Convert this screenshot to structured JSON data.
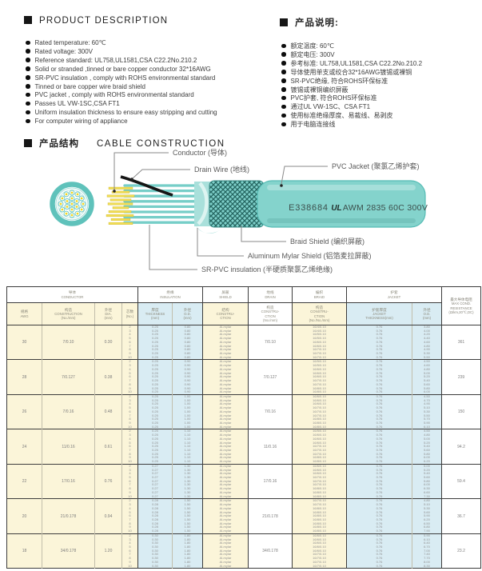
{
  "colors": {
    "accent_teal": "#5fc2bb",
    "jacket_teal": "#84d3cc",
    "conductor_yellow": "#f2dd55",
    "table_yellow": "#fbf5d9",
    "table_blue": "#d9ecf3"
  },
  "product_description": {
    "title": "PRODUCT DESCRIPTION",
    "items": [
      "Rated temperature: 60℃",
      "Rated voltage: 300V",
      "Reference standard: UL758,UL1581,CSA C22.2No.210.2",
      "Solid or stranded ,tinned or bare copper conductor 32*16AWG",
      "SR-PVC insulation , comply with ROHS environmental standard",
      "Tinned or bare copper wire braid shield",
      "PVC jacket , comply with ROHS environmental standard",
      "Passes UL VW-1SC,CSA FT1",
      "Uniform insulation thickness to ensure easy stripping and cutting",
      "For computer wiring of appliance"
    ]
  },
  "product_description_cn": {
    "title": "产品说明:",
    "items": [
      "额定温度: 60℃",
      "额定电压: 300V",
      "参考标准: UL758,UL1581,CSA C22.2No.210.2",
      "导体使用单支或绞合32*16AWG镀锡或裸铜",
      "SR-PVC绝缘, 符合ROHS环保标准",
      "镀锡或裸铜编织屏蔽",
      "PVC护套, 符合ROHS环保标准",
      "通过UL VW-1SC、CSA FT1",
      "使用标准绝缘厚度、易裁线、易剥皮",
      "用于电脑连接线"
    ]
  },
  "construction": {
    "title_cn": "产品结构",
    "title_en": "CABLE CONSTRUCTION",
    "labels": {
      "conductor": "Conductor (导体)",
      "drain": "Drain Wire (地线)",
      "jacket": "PVC Jacket (聚氯乙烯护套)",
      "braid": "Braid Shield (编织屏蔽)",
      "mylar": "Aluminum Mylar Shield (铝箔麦拉屏蔽)",
      "insulation": "SR-PVC insulation (半硬质聚氯乙烯绝缘)"
    },
    "print_left": "E338684",
    "print_ul": "UL",
    "print_right": "AWM 2835 60C 300V"
  },
  "table": {
    "groups": [
      {
        "cn": "导体",
        "en": "CONDUCTOR",
        "span": 4
      },
      {
        "cn": "绝缘",
        "en": "INSULATION",
        "span": 2
      },
      {
        "cn": "屏蔽",
        "en": "SHIELD",
        "span": 1
      },
      {
        "cn": "地线",
        "en": "DRAIN",
        "span": 1
      },
      {
        "cn": "编织",
        "en": "BRAID",
        "span": 1
      },
      {
        "cn": "护套",
        "en": "JACKET",
        "span": 2
      }
    ],
    "columns": [
      {
        "lines": [
          "规格",
          "AWG"
        ]
      },
      {
        "lines": [
          "构造",
          "CONSTRUCTION",
          "(No./mm)"
        ]
      },
      {
        "lines": [
          "外径",
          "DIA.",
          "(mm)"
        ]
      },
      {
        "lines": [
          "芯数",
          "(No.)"
        ]
      },
      {
        "lines": [
          "厚度",
          "THICKNESS",
          "(mm)"
        ]
      },
      {
        "lines": [
          "外径",
          "O.D.",
          "(mm)"
        ]
      },
      {
        "lines": [
          "结构",
          "CONSTRU-",
          "CTION"
        ]
      },
      {
        "lines": [
          "构造",
          "CONSTRU-",
          "CTION",
          "(No./mm)"
        ]
      },
      {
        "lines": [
          "构造",
          "CONSTRU-",
          "CTION",
          "(No./No./mm)"
        ]
      },
      {
        "lines": [
          "护套厚度",
          "JACKET",
          "THICKNESS(mm)"
        ]
      },
      {
        "lines": [
          "外径",
          "O.D.",
          "(mm)"
        ]
      }
    ],
    "last_col": {
      "lines": [
        "最大导体电阻",
        "MAX COND.",
        "RESISTANCE",
        "(Ω/km,20℃,DC)"
      ]
    },
    "rows": [
      {
        "awg": "30",
        "construction": "7/0.10",
        "dia": "0.30",
        "drain": "7/0.10",
        "max_resistance": "361",
        "cores": [
          "2",
          "3",
          "4",
          "5",
          "6",
          "7",
          "8",
          "9",
          "10"
        ],
        "ins_thickness": [
          "0.25",
          "0.25",
          "0.25",
          "0.25",
          "0.25",
          "0.25",
          "0.25",
          "0.25",
          "0.25"
        ],
        "ins_od": [
          "0.80",
          "0.80",
          "0.80",
          "0.80",
          "0.80",
          "0.80",
          "0.80",
          "0.80",
          "0.80"
        ],
        "shield": [
          "Al-mylar",
          "Al-mylar",
          "Al-mylar",
          "Al-mylar",
          "Al-mylar",
          "Al-mylar",
          "Al-mylar",
          "Al-mylar",
          "Al-mylar"
        ],
        "braid": [
          "16/4/0.10",
          "16/4/0.10",
          "16/5/0.10",
          "16/5/0.10",
          "16/6/0.10",
          "16/6/0.10",
          "16/7/0.10",
          "16/7/0.10",
          "16/7/0.10"
        ],
        "jacket_thickness": [
          "0.76",
          "0.76",
          "0.76",
          "0.76",
          "0.76",
          "0.76",
          "0.76",
          "0.76",
          "0.76"
        ],
        "jacket_od": [
          "3.80",
          "4.00",
          "4.20",
          "4.40",
          "4.60",
          "4.80",
          "4.90",
          "5.30",
          "5.50"
        ]
      },
      {
        "awg": "28",
        "construction": "7/0.127",
        "dia": "0.38",
        "drain": "7/0.127",
        "max_resistance": "239",
        "cores": [
          "2",
          "3",
          "4",
          "5",
          "6",
          "7",
          "8",
          "9",
          "10"
        ],
        "ins_thickness": [
          "0.25",
          "0.25",
          "0.25",
          "0.25",
          "0.25",
          "0.25",
          "0.25",
          "0.25",
          "0.25"
        ],
        "ins_od": [
          "0.90",
          "0.90",
          "0.90",
          "0.90",
          "0.90",
          "0.90",
          "0.90",
          "0.90",
          "0.90"
        ],
        "shield": [
          "Al-mylar",
          "Al-mylar",
          "Al-mylar",
          "Al-mylar",
          "Al-mylar",
          "Al-mylar",
          "Al-mylar",
          "Al-mylar",
          "Al-mylar"
        ],
        "braid": [
          "16/5/0.10",
          "16/5/0.10",
          "16/6/0.10",
          "16/6/0.10",
          "16/6/0.10",
          "16/7/0.10",
          "16/7/0.10",
          "16/8/0.10",
          "16/8/0.10"
        ],
        "jacket_thickness": [
          "0.76",
          "0.76",
          "0.76",
          "0.76",
          "0.76",
          "0.76",
          "0.76",
          "0.76",
          "0.76"
        ],
        "jacket_od": [
          "4.50",
          "4.60",
          "4.80",
          "5.00",
          "5.20",
          "5.40",
          "5.60",
          "5.80",
          "6.00"
        ]
      },
      {
        "awg": "26",
        "construction": "7/0.16",
        "dia": "0.48",
        "drain": "7/0.16",
        "max_resistance": "150",
        "cores": [
          "2",
          "3",
          "4",
          "5",
          "6",
          "7",
          "8",
          "9",
          "10"
        ],
        "ins_thickness": [
          "0.25",
          "0.25",
          "0.25",
          "0.25",
          "0.25",
          "0.25",
          "0.25",
          "0.25",
          "0.25"
        ],
        "ins_od": [
          "1.00",
          "1.00",
          "1.00",
          "1.00",
          "1.00",
          "1.00",
          "1.00",
          "1.00",
          "1.00"
        ],
        "shield": [
          "Al-mylar",
          "Al-mylar",
          "Al-mylar",
          "Al-mylar",
          "Al-mylar",
          "Al-mylar",
          "Al-mylar",
          "Al-mylar",
          "Al-mylar"
        ],
        "braid": [
          "16/6/0.10",
          "16/6/0.10",
          "16/6/0.10",
          "16/7/0.10",
          "16/7/0.10",
          "16/7/0.10",
          "16/8/0.10",
          "16/8/0.10",
          "16/8/0.10"
        ],
        "jacket_thickness": [
          "0.76",
          "0.76",
          "0.76",
          "0.76",
          "0.76",
          "0.76",
          "0.76",
          "0.76",
          "0.76"
        ],
        "jacket_od": [
          "4.50",
          "4.70",
          "4.90",
          "5.10",
          "5.30",
          "5.50",
          "5.70",
          "5.90",
          "6.10"
        ]
      },
      {
        "awg": "24",
        "construction": "11/0.16",
        "dia": "0.61",
        "drain": "11/0.16",
        "max_resistance": "94.2",
        "cores": [
          "2",
          "3",
          "4",
          "5",
          "6",
          "7",
          "8",
          "9",
          "10"
        ],
        "ins_thickness": [
          "0.25",
          "0.25",
          "0.25",
          "0.25",
          "0.25",
          "0.25",
          "0.25",
          "0.25",
          "0.25"
        ],
        "ins_od": [
          "1.10",
          "1.10",
          "1.10",
          "1.10",
          "1.10",
          "1.10",
          "1.10",
          "1.10",
          "1.10"
        ],
        "shield": [
          "Al-mylar",
          "Al-mylar",
          "Al-mylar",
          "Al-mylar",
          "Al-mylar",
          "Al-mylar",
          "Al-mylar",
          "Al-mylar",
          "Al-mylar"
        ],
        "braid": [
          "16/5/0.10",
          "16/6/0.10",
          "16/6/0.10",
          "16/6/0.10",
          "16/7/0.10",
          "16/7/0.10",
          "16/7/0.10",
          "16/8/0.10",
          "16/8/0.10"
        ],
        "jacket_thickness": [
          "0.76",
          "0.76",
          "0.76",
          "0.76",
          "0.76",
          "0.76",
          "0.76",
          "0.76",
          "0.76"
        ],
        "jacket_od": [
          "4.50",
          "4.80",
          "5.00",
          "5.20",
          "5.40",
          "5.60",
          "5.80",
          "6.00",
          "6.20"
        ]
      },
      {
        "awg": "22",
        "construction": "17/0.16",
        "dia": "0.76",
        "drain": "17/0.16",
        "max_resistance": "59.4",
        "cores": [
          "2",
          "3",
          "4",
          "5",
          "6",
          "7",
          "8",
          "9",
          "10"
        ],
        "ins_thickness": [
          "0.27",
          "0.27",
          "0.27",
          "0.27",
          "0.27",
          "0.27",
          "0.27",
          "0.27",
          "0.27"
        ],
        "ins_od": [
          "1.30",
          "1.30",
          "1.30",
          "1.30",
          "1.30",
          "1.30",
          "1.30",
          "1.30",
          "1.30"
        ],
        "shield": [
          "Al-mylar",
          "Al-mylar",
          "Al-mylar",
          "Al-mylar",
          "Al-mylar",
          "Al-mylar",
          "Al-mylar",
          "Al-mylar",
          "Al-mylar"
        ],
        "braid": [
          "16/6/0.10",
          "16/6/0.10",
          "16/6/0.10",
          "16/7/0.10",
          "16/7/0.10",
          "16/7/0.10",
          "16/8/0.10",
          "16/8/0.10",
          "16/8/0.10"
        ],
        "jacket_thickness": [
          "0.76",
          "0.76",
          "0.76",
          "0.76",
          "0.76",
          "0.76",
          "0.76",
          "0.76",
          "0.76"
        ],
        "jacket_od": [
          "5.00",
          "5.20",
          "5.40",
          "5.60",
          "5.80",
          "6.00",
          "6.30",
          "6.60",
          "7.30"
        ]
      },
      {
        "awg": "20",
        "construction": "21/0.178",
        "dia": "0.94",
        "drain": "21/0.178",
        "max_resistance": "36.7",
        "cores": [
          "2",
          "3",
          "4",
          "5",
          "6",
          "7",
          "8",
          "9",
          "10"
        ],
        "ins_thickness": [
          "0.28",
          "0.28",
          "0.28",
          "0.28",
          "0.28",
          "0.28",
          "0.28",
          "0.28",
          "0.28"
        ],
        "ins_od": [
          "1.50",
          "1.50",
          "1.50",
          "1.50",
          "1.50",
          "1.50",
          "1.50",
          "1.50",
          "1.50"
        ],
        "shield": [
          "Al-mylar",
          "Al-mylar",
          "Al-mylar",
          "Al-mylar",
          "Al-mylar",
          "Al-mylar",
          "Al-mylar",
          "Al-mylar",
          "Al-mylar"
        ],
        "braid": [
          "16/7/0.10",
          "16/7/0.10",
          "16/8/0.10",
          "16/8/0.10",
          "16/8/0.10",
          "16/8/0.10",
          "16/8/0.10",
          "16/8/0.10",
          "16/8/0.10"
        ],
        "jacket_thickness": [
          "0.76",
          "0.76",
          "0.76",
          "0.76",
          "0.76",
          "0.76",
          "0.76",
          "0.76",
          "0.76"
        ],
        "jacket_od": [
          "4.80",
          "5.10",
          "5.30",
          "5.60",
          "5.90",
          "6.20",
          "6.50",
          "6.80",
          "7.90"
        ]
      },
      {
        "awg": "18",
        "construction": "34/0.178",
        "dia": "1.20",
        "drain": "34/0.178",
        "max_resistance": "23.2",
        "cores": [
          "2",
          "3",
          "4",
          "5",
          "6",
          "7",
          "8",
          "9",
          "10"
        ],
        "ins_thickness": [
          "0.30",
          "0.30",
          "0.30",
          "0.30",
          "0.30",
          "0.30",
          "0.30",
          "0.30",
          "0.30"
        ],
        "ins_od": [
          "1.80",
          "1.80",
          "1.80",
          "1.80",
          "1.80",
          "1.80",
          "1.80",
          "1.80",
          "1.80"
        ],
        "shield": [
          "Al-mylar",
          "Al-mylar",
          "Al-mylar",
          "Al-mylar",
          "Al-mylar",
          "Al-mylar",
          "Al-mylar",
          "Al-mylar",
          "Al-mylar"
        ],
        "braid": [
          "16/6/0.10",
          "16/6/0.10",
          "16/6/0.10",
          "16/6/0.10",
          "16/6/0.10",
          "16/7/0.10",
          "16/7/0.10",
          "16/7/0.10",
          "16/7/0.10"
        ],
        "jacket_thickness": [
          "0.76",
          "0.76",
          "0.76",
          "0.76",
          "0.76",
          "0.76",
          "0.76",
          "0.76",
          "0.76"
        ],
        "jacket_od": [
          "5.90",
          "6.10",
          "6.40",
          "6.70",
          "7.00",
          "7.40",
          "7.70",
          "8.00",
          "8.30"
        ]
      }
    ]
  }
}
